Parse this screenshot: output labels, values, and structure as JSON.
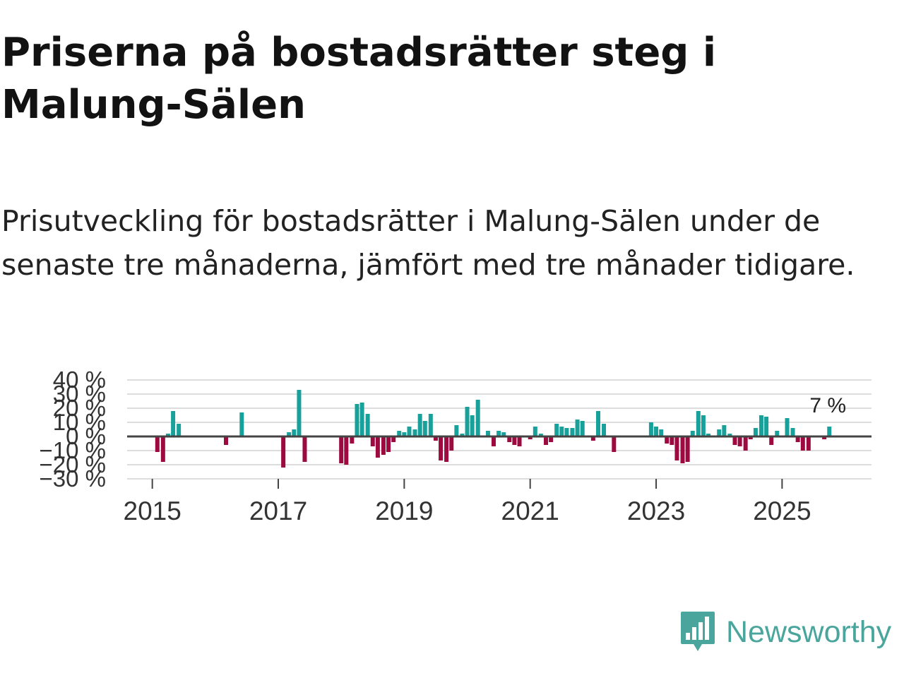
{
  "title": "Priserna på bostadsrätter steg i Malung-Sälen",
  "subtitle": "Prisutveckling för bostadsrätter i Malung-Sälen under de senaste tre månaderna, jämfört med tre månader tidigare.",
  "brand": {
    "name": "Newsworthy",
    "color": "#4aa69c"
  },
  "colors": {
    "positive": "#17a19a",
    "negative": "#9d0a3f",
    "grid": "#dddddd",
    "zero": "#444444"
  },
  "chart_data": {
    "type": "bar",
    "title": "Priserna på bostadsrätter steg i Malung-Sälen",
    "xlabel": "",
    "ylabel": "",
    "ylim": [
      -30,
      40
    ],
    "grid": true,
    "y_ticks": [
      -30,
      -20,
      -10,
      0,
      10,
      20,
      30,
      40
    ],
    "y_tick_labels": [
      "−30 %",
      "−20 %",
      "−10 %",
      "0 %",
      "10 %",
      "20 %",
      "30 %",
      "40 %"
    ],
    "x_ticks": [
      2015,
      2017,
      2019,
      2021,
      2023,
      2025
    ],
    "x_tick_labels": [
      "2015",
      "2017",
      "2019",
      "2021",
      "2023",
      "2025"
    ],
    "last_value_label": "7 %",
    "series": [
      {
        "name": "Prisutveckling",
        "points": [
          {
            "x": 2015.08,
            "y": -11
          },
          {
            "x": 2015.17,
            "y": -18
          },
          {
            "x": 2015.25,
            "y": 2
          },
          {
            "x": 2015.33,
            "y": 18
          },
          {
            "x": 2015.42,
            "y": 9
          },
          {
            "x": 2016.17,
            "y": -6
          },
          {
            "x": 2016.42,
            "y": 17
          },
          {
            "x": 2017.08,
            "y": -22
          },
          {
            "x": 2017.17,
            "y": 3
          },
          {
            "x": 2017.25,
            "y": 5
          },
          {
            "x": 2017.33,
            "y": 33
          },
          {
            "x": 2017.42,
            "y": -18
          },
          {
            "x": 2018.0,
            "y": -19
          },
          {
            "x": 2018.08,
            "y": -20
          },
          {
            "x": 2018.17,
            "y": -5
          },
          {
            "x": 2018.25,
            "y": 23
          },
          {
            "x": 2018.33,
            "y": 24
          },
          {
            "x": 2018.42,
            "y": 16
          },
          {
            "x": 2018.5,
            "y": -7
          },
          {
            "x": 2018.58,
            "y": -15
          },
          {
            "x": 2018.67,
            "y": -13
          },
          {
            "x": 2018.75,
            "y": -11
          },
          {
            "x": 2018.83,
            "y": -4
          },
          {
            "x": 2018.92,
            "y": 4
          },
          {
            "x": 2019.0,
            "y": 3
          },
          {
            "x": 2019.08,
            "y": 7
          },
          {
            "x": 2019.17,
            "y": 5
          },
          {
            "x": 2019.25,
            "y": 16
          },
          {
            "x": 2019.33,
            "y": 11
          },
          {
            "x": 2019.42,
            "y": 16
          },
          {
            "x": 2019.5,
            "y": -3
          },
          {
            "x": 2019.58,
            "y": -17
          },
          {
            "x": 2019.67,
            "y": -18
          },
          {
            "x": 2019.75,
            "y": -10
          },
          {
            "x": 2019.83,
            "y": 8
          },
          {
            "x": 2019.92,
            "y": 2
          },
          {
            "x": 2020.0,
            "y": 21
          },
          {
            "x": 2020.08,
            "y": 15
          },
          {
            "x": 2020.17,
            "y": 26
          },
          {
            "x": 2020.33,
            "y": 4
          },
          {
            "x": 2020.42,
            "y": -7
          },
          {
            "x": 2020.5,
            "y": 4
          },
          {
            "x": 2020.58,
            "y": 3
          },
          {
            "x": 2020.67,
            "y": -4
          },
          {
            "x": 2020.75,
            "y": -6
          },
          {
            "x": 2020.83,
            "y": -7
          },
          {
            "x": 2021.0,
            "y": -2
          },
          {
            "x": 2021.08,
            "y": 7
          },
          {
            "x": 2021.17,
            "y": 2
          },
          {
            "x": 2021.25,
            "y": -6
          },
          {
            "x": 2021.33,
            "y": -4
          },
          {
            "x": 2021.42,
            "y": 9
          },
          {
            "x": 2021.5,
            "y": 7
          },
          {
            "x": 2021.58,
            "y": 6
          },
          {
            "x": 2021.67,
            "y": 6
          },
          {
            "x": 2021.75,
            "y": 12
          },
          {
            "x": 2021.83,
            "y": 11
          },
          {
            "x": 2022.0,
            "y": -3
          },
          {
            "x": 2022.08,
            "y": 18
          },
          {
            "x": 2022.17,
            "y": 9
          },
          {
            "x": 2022.33,
            "y": -11
          },
          {
            "x": 2022.92,
            "y": 10
          },
          {
            "x": 2023.0,
            "y": 7
          },
          {
            "x": 2023.08,
            "y": 5
          },
          {
            "x": 2023.17,
            "y": -5
          },
          {
            "x": 2023.25,
            "y": -6
          },
          {
            "x": 2023.33,
            "y": -17
          },
          {
            "x": 2023.42,
            "y": -19
          },
          {
            "x": 2023.5,
            "y": -18
          },
          {
            "x": 2023.58,
            "y": 4
          },
          {
            "x": 2023.67,
            "y": 18
          },
          {
            "x": 2023.75,
            "y": 15
          },
          {
            "x": 2023.83,
            "y": 2
          },
          {
            "x": 2024.0,
            "y": 5
          },
          {
            "x": 2024.08,
            "y": 8
          },
          {
            "x": 2024.17,
            "y": 2
          },
          {
            "x": 2024.25,
            "y": -6
          },
          {
            "x": 2024.33,
            "y": -7
          },
          {
            "x": 2024.42,
            "y": -10
          },
          {
            "x": 2024.5,
            "y": -2
          },
          {
            "x": 2024.58,
            "y": 6
          },
          {
            "x": 2024.67,
            "y": 15
          },
          {
            "x": 2024.75,
            "y": 14
          },
          {
            "x": 2024.83,
            "y": -6
          },
          {
            "x": 2024.92,
            "y": 4
          },
          {
            "x": 2025.08,
            "y": 13
          },
          {
            "x": 2025.17,
            "y": 6
          },
          {
            "x": 2025.25,
            "y": -4
          },
          {
            "x": 2025.33,
            "y": -10
          },
          {
            "x": 2025.42,
            "y": -10
          },
          {
            "x": 2025.67,
            "y": -2
          },
          {
            "x": 2025.75,
            "y": 7
          }
        ]
      }
    ]
  }
}
